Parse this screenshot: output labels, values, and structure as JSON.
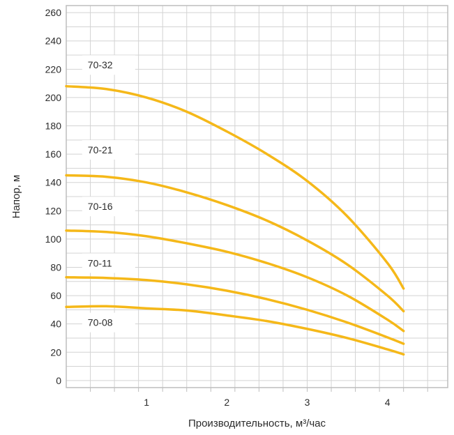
{
  "chart_data": {
    "type": "line",
    "title": "",
    "xlabel": "Производительность, м³/час",
    "ylabel": "Напор, м",
    "xlim": [
      0,
      4.75
    ],
    "ylim": [
      -5,
      265
    ],
    "x_ticks": [
      1,
      2,
      3,
      4
    ],
    "x_tick_labels": [
      "1",
      "2",
      "3",
      "4"
    ],
    "y_ticks": [
      0,
      20,
      40,
      60,
      80,
      100,
      120,
      140,
      160,
      180,
      200,
      220,
      240,
      260
    ],
    "y_tick_labels": [
      "0",
      "20",
      "40",
      "60",
      "80",
      "100",
      "120",
      "140",
      "160",
      "180",
      "200",
      "220",
      "240",
      "260"
    ],
    "grid": true,
    "line_color": "#f5b819",
    "grid_color": "#d3d3d3",
    "series": [
      {
        "name": "70-32",
        "x": [
          0,
          0.5,
          1,
          1.5,
          2,
          2.5,
          3,
          3.5,
          4,
          4.2
        ],
        "y": [
          208,
          206,
          200,
          190,
          176,
          160,
          141,
          116,
          83,
          65
        ]
      },
      {
        "name": "70-21",
        "x": [
          0,
          0.5,
          1,
          1.5,
          2,
          2.5,
          3,
          3.5,
          4,
          4.2
        ],
        "y": [
          145,
          144,
          140,
          133,
          124,
          113,
          99,
          82,
          60,
          49
        ]
      },
      {
        "name": "70-16",
        "x": [
          0,
          0.5,
          1,
          1.5,
          2,
          2.5,
          3,
          3.5,
          4,
          4.2
        ],
        "y": [
          106,
          105,
          102,
          97,
          91,
          83,
          73,
          60,
          43,
          35
        ]
      },
      {
        "name": "70-11",
        "x": [
          0,
          0.5,
          1,
          1.5,
          2,
          2.5,
          3,
          3.5,
          4,
          4.2
        ],
        "y": [
          73,
          72.5,
          71,
          68,
          63.5,
          57.5,
          50,
          41,
          30.5,
          26
        ]
      },
      {
        "name": "70-08",
        "x": [
          0,
          0.5,
          1,
          1.5,
          2,
          2.5,
          3,
          3.5,
          4,
          4.2
        ],
        "y": [
          52,
          52.5,
          51,
          49.5,
          46,
          42,
          36.5,
          30,
          22,
          18.5
        ]
      }
    ]
  }
}
